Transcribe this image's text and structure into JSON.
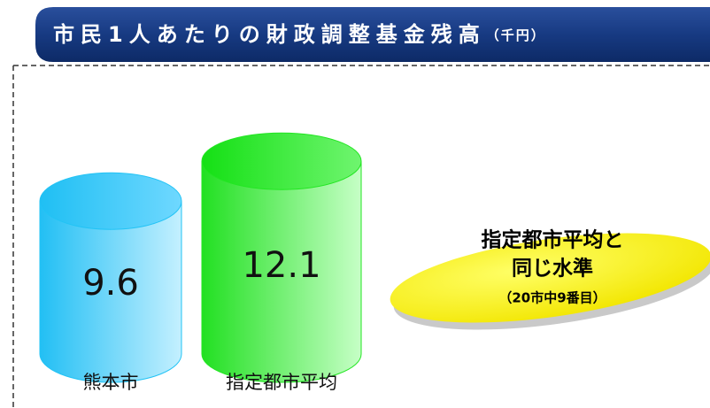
{
  "chart_data": {
    "type": "cylinder",
    "title": "市民1人あたりの財政調整基金残高",
    "unit": "（千円）",
    "categories": [
      "熊本市",
      "指定都市平均"
    ],
    "values": [
      9.6,
      12.1
    ],
    "colors": [
      "#22c3f5",
      "#22e622"
    ],
    "annotation": {
      "lines": [
        "指定都市平均と",
        "同じ水準"
      ],
      "note": "（20市中9番目）"
    }
  }
}
